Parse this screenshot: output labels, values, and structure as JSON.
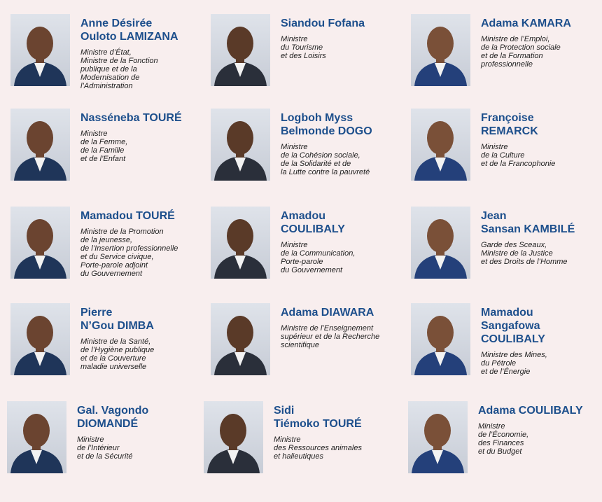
{
  "ministers": [
    {
      "name": [
        "Anne Désirée",
        "Ouloto LAMIZANA"
      ],
      "role": [
        "Ministre d’État,",
        "Ministre de la Fonction",
        "publique et de la",
        "Modernisation de",
        "l’Administration"
      ]
    },
    {
      "name": [
        "Siandou Fofana"
      ],
      "role": [
        "Ministre",
        "du Tourisme",
        "et des Loisirs"
      ]
    },
    {
      "name": [
        "Adama KAMARA"
      ],
      "role": [
        "Ministre de l’Emploi,",
        "de la Protection sociale",
        "et de la Formation",
        "professionnelle"
      ]
    },
    {
      "name": [
        "Nasséneba TOURÉ"
      ],
      "role": [
        "Ministre",
        "de la Femme,",
        "de la Famille",
        "et de l’Enfant"
      ]
    },
    {
      "name": [
        "Logboh Myss",
        "Belmonde DOGO"
      ],
      "role": [
        "Ministre",
        "de la Cohésion sociale,",
        "de la Solidarité et de",
        "la Lutte contre la pauvreté"
      ]
    },
    {
      "name": [
        "Françoise",
        "REMARCK"
      ],
      "role": [
        "Ministre",
        "de la Culture",
        "et de la Francophonie"
      ]
    },
    {
      "name": [
        "Mamadou TOURÉ"
      ],
      "role": [
        "Ministre de la Promotion",
        "de la jeunesse,",
        "de l’Insertion professionnelle",
        "et du Service civique,",
        "Porte-parole adjoint",
        "du Gouvernement"
      ]
    },
    {
      "name": [
        "Amadou",
        "COULIBALY"
      ],
      "role": [
        "Ministre",
        "de la Communication,",
        "Porte-parole",
        "du Gouvernement"
      ]
    },
    {
      "name": [
        "Jean",
        "Sansan KAMBILÉ"
      ],
      "role": [
        "Garde des Sceaux,",
        "Ministre de la Justice",
        "et des Droits de l’Homme"
      ]
    },
    {
      "name": [
        "Pierre",
        "N’Gou DIMBA"
      ],
      "role": [
        "Ministre de la Santé,",
        "de l’Hygiène publique",
        "et de la Couverture",
        "maladie universelle"
      ]
    },
    {
      "name": [
        "Adama DIAWARA"
      ],
      "role": [
        "Ministre de l’Enseignement",
        "supérieur et de la Recherche",
        "scientifique"
      ]
    },
    {
      "name": [
        "Mamadou",
        "Sangafowa",
        "COULIBALY"
      ],
      "role": [
        "Ministre des Mines,",
        "du Pétrole",
        "et de l’Énergie"
      ]
    },
    {
      "name": [
        "Gal. Vagondo",
        "DIOMANDÉ"
      ],
      "role": [
        "Ministre",
        "de l’Intérieur",
        "et de la Sécurité"
      ]
    },
    {
      "name": [
        "Sidi",
        "Tiémoko TOURÉ"
      ],
      "role": [
        "Ministre",
        "des Ressources animales",
        "et halieutiques"
      ]
    },
    {
      "name": [
        "Adama COULIBALY"
      ],
      "role": [
        "Ministre",
        "de l’Économie,",
        "des Finances",
        "et du Budget"
      ]
    }
  ]
}
